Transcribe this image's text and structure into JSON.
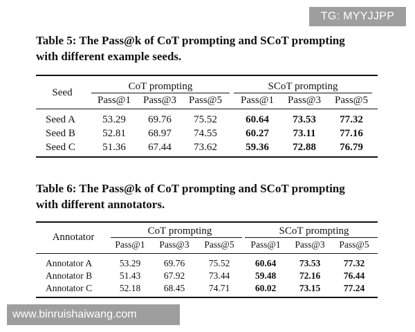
{
  "watermarks": {
    "top": "TG: MYYJJPP",
    "bottom": "www.binruishaiwang.com"
  },
  "table5": {
    "caption_line1": "Table 5: The Pass@k of CoT prompting and SCoT prompting",
    "caption_line2": "with different example seeds.",
    "row_header": "Seed",
    "group1": "CoT prompting",
    "group2": "SCoT prompting",
    "subheaders": [
      "Pass@1",
      "Pass@3",
      "Pass@5",
      "Pass@1",
      "Pass@3",
      "Pass@5"
    ],
    "rows": [
      {
        "label": "Seed A",
        "values": [
          "53.29",
          "69.76",
          "75.52",
          "60.64",
          "73.53",
          "77.32"
        ]
      },
      {
        "label": "Seed B",
        "values": [
          "52.81",
          "68.97",
          "74.55",
          "60.27",
          "73.11",
          "77.16"
        ]
      },
      {
        "label": "Seed C",
        "values": [
          "51.36",
          "67.44",
          "73.62",
          "59.36",
          "72.88",
          "76.79"
        ]
      }
    ]
  },
  "table6": {
    "caption_line1": "Table 6: The Pass@k of CoT prompting and SCoT prompting",
    "caption_line2": "with different annotators.",
    "row_header": "Annotator",
    "group1": "CoT prompting",
    "group2": "SCoT prompting",
    "subheaders": [
      "Pass@1",
      "Pass@3",
      "Pass@5",
      "Pass@1",
      "Pass@3",
      "Pass@5"
    ],
    "rows": [
      {
        "label": "Annotator A",
        "values": [
          "53.29",
          "69.76",
          "75.52",
          "60.64",
          "73.53",
          "77.32"
        ]
      },
      {
        "label": "Annotator B",
        "values": [
          "51.43",
          "67.92",
          "73.44",
          "59.48",
          "72.16",
          "76.44"
        ]
      },
      {
        "label": "Annotator C",
        "values": [
          "52.18",
          "68.45",
          "74.71",
          "60.02",
          "73.15",
          "77.24"
        ]
      }
    ]
  }
}
